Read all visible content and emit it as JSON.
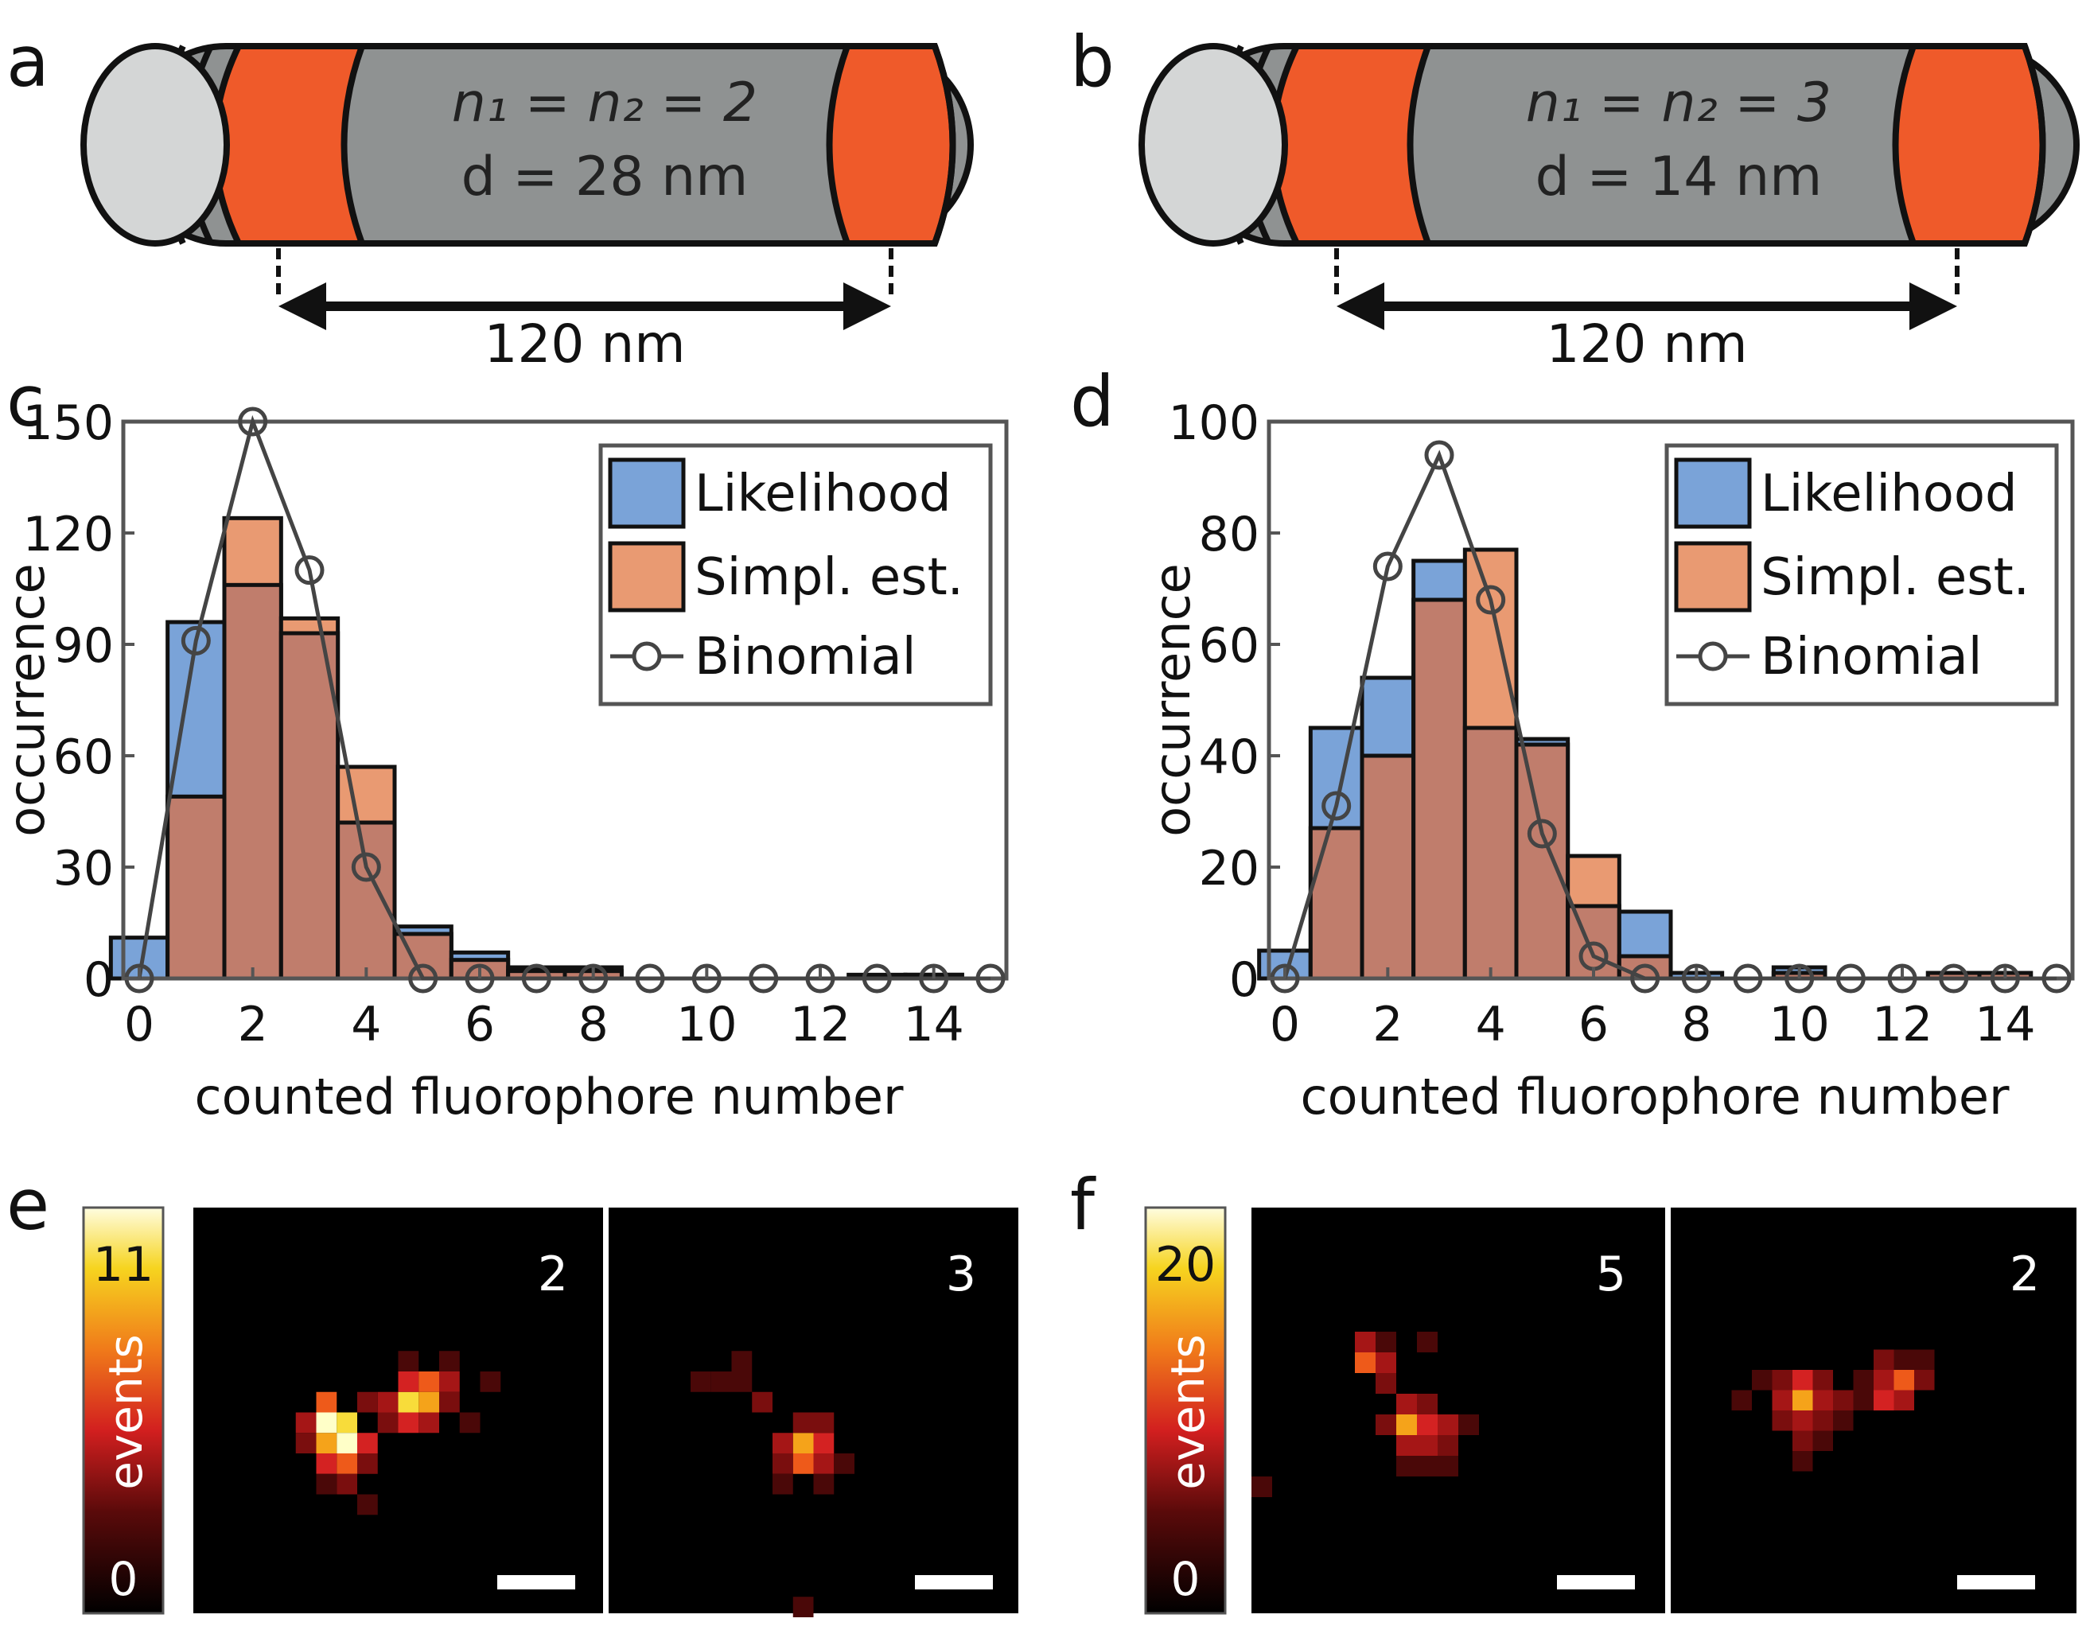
{
  "panels": {
    "a": {
      "letter": "a",
      "line1": "n₁ = n₂ = 2",
      "line2": "d = 28 nm",
      "dimension": "120 nm"
    },
    "b": {
      "letter": "b",
      "line1": "n₁ = n₂ = 3",
      "line2": "d = 14 nm",
      "dimension": "120 nm"
    },
    "c": {
      "letter": "c"
    },
    "d": {
      "letter": "d"
    },
    "e": {
      "letter": "e",
      "colorbar": {
        "max": "11",
        "min": "0",
        "label": "events"
      },
      "image_labels": [
        "2",
        "3"
      ]
    },
    "f": {
      "letter": "f",
      "colorbar": {
        "max": "20",
        "min": "0",
        "label": "events"
      },
      "image_labels": [
        "5",
        "2"
      ]
    }
  },
  "colors": {
    "likelihood": "#7aa3d8",
    "simpl_est": "#e99a72",
    "overlap": "#c07d6c",
    "binomial": "#444444",
    "rod_body": "#8f9292",
    "rod_band": "#ef5a2a",
    "rod_cap": "#d4d6d6"
  },
  "chart_data": [
    {
      "type": "bar",
      "panel": "c",
      "xlabel": "counted fluorophore number",
      "ylabel": "occurrence",
      "xlim": [
        0,
        15
      ],
      "ylim": [
        0,
        150
      ],
      "xticks": [
        0,
        2,
        4,
        6,
        8,
        10,
        12,
        14
      ],
      "yticks": [
        0,
        30,
        60,
        90,
        120,
        150
      ],
      "legend": [
        "Likelihood",
        "Simpl. est.",
        "Binomial"
      ],
      "legend_position": "top-right",
      "x": [
        0,
        1,
        2,
        3,
        4,
        5,
        6,
        7,
        8,
        9,
        10,
        11,
        12,
        13,
        14,
        15
      ],
      "series": [
        {
          "name": "Likelihood",
          "values": [
            11,
            96,
            106,
            93,
            42,
            14,
            7,
            3,
            3,
            0,
            0,
            0,
            0,
            1,
            1,
            0
          ]
        },
        {
          "name": "Simpl. est.",
          "values": [
            0,
            49,
            124,
            97,
            57,
            12,
            5,
            2,
            2,
            0,
            0,
            0,
            0,
            0,
            1,
            0
          ]
        },
        {
          "name": "Binomial",
          "values": [
            0,
            91,
            150,
            110,
            30,
            0,
            0,
            0,
            0,
            0,
            0,
            0,
            0,
            0,
            0,
            0
          ]
        }
      ]
    },
    {
      "type": "bar",
      "panel": "d",
      "xlabel": "counted fluorophore number",
      "ylabel": "occurrence",
      "xlim": [
        0,
        15
      ],
      "ylim": [
        0,
        100
      ],
      "xticks": [
        0,
        2,
        4,
        6,
        8,
        10,
        12,
        14
      ],
      "yticks": [
        0,
        20,
        40,
        60,
        80,
        100
      ],
      "legend": [
        "Likelihood",
        "Simpl. est.",
        "Binomial"
      ],
      "legend_position": "top-right",
      "x": [
        0,
        1,
        2,
        3,
        4,
        5,
        6,
        7,
        8,
        9,
        10,
        11,
        12,
        13,
        14,
        15
      ],
      "series": [
        {
          "name": "Likelihood",
          "values": [
            5,
            45,
            54,
            75,
            45,
            43,
            13,
            12,
            1,
            0,
            2,
            0,
            0,
            1,
            1,
            0
          ]
        },
        {
          "name": "Simpl. est.",
          "values": [
            0,
            27,
            40,
            68,
            77,
            42,
            22,
            4,
            0,
            0,
            1,
            0,
            0,
            1,
            1,
            0
          ]
        },
        {
          "name": "Binomial",
          "values": [
            0,
            31,
            74,
            94,
            68,
            26,
            4,
            0,
            0,
            0,
            0,
            0,
            0,
            0,
            0,
            0
          ]
        }
      ]
    }
  ]
}
